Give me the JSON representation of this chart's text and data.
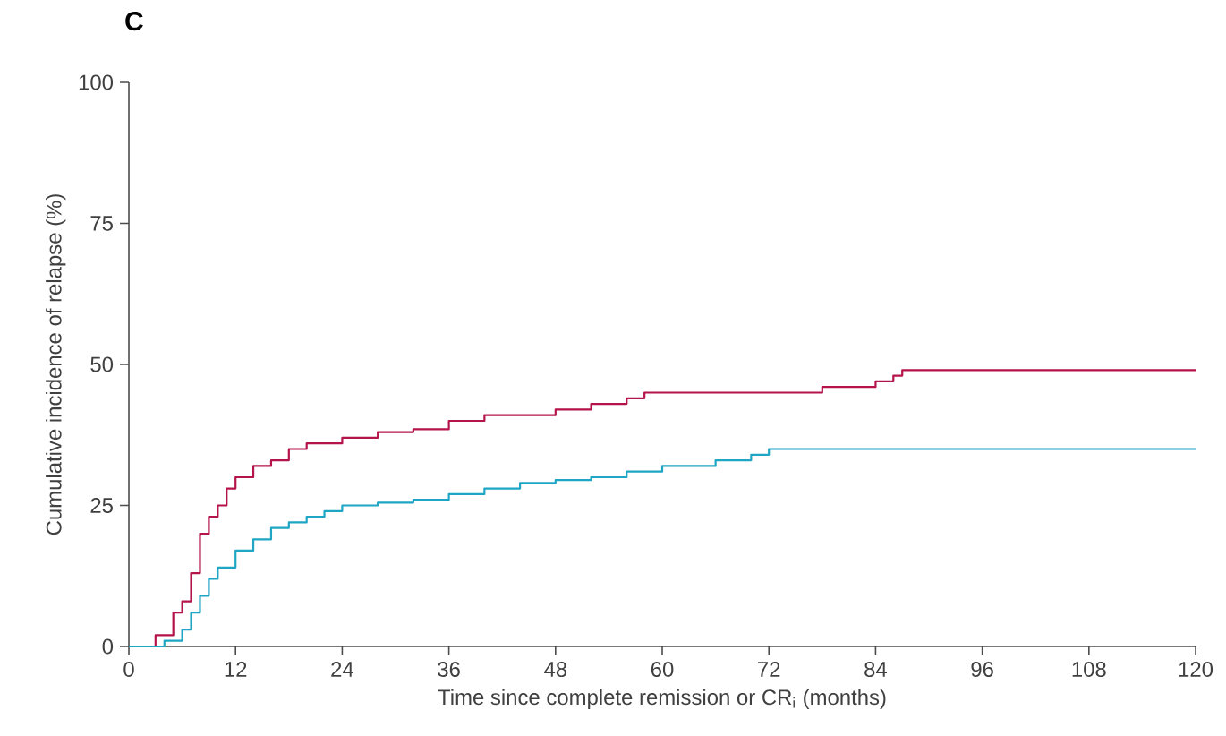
{
  "chart_data": {
    "type": "step",
    "title": "C",
    "xlabel": "Time since complete remission or CR$_{i}$ (months)",
    "ylabel": "Cumulative incidence of relapse (%)",
    "xlim": [
      0,
      120
    ],
    "xticks": [
      0,
      12,
      24,
      36,
      48,
      60,
      72,
      84,
      96,
      108,
      120
    ],
    "ylim": [
      0,
      100
    ],
    "yticks": [
      0,
      25,
      50,
      75,
      100
    ],
    "grid": false,
    "series": [
      {
        "color": "#b5134b",
        "x": [
          0,
          3,
          5,
          6,
          7,
          8,
          9,
          10,
          11,
          12,
          14,
          16,
          18,
          20,
          24,
          28,
          32,
          36,
          40,
          48,
          52,
          56,
          58,
          72,
          78,
          84,
          86,
          87,
          120
        ],
        "values": [
          0,
          2,
          6,
          8,
          13,
          20,
          23,
          25,
          28,
          30,
          32,
          33,
          35,
          36,
          37,
          38,
          38.5,
          40,
          41,
          42,
          43,
          44,
          45,
          45,
          46,
          47,
          48,
          49,
          49
        ]
      },
      {
        "color": "#1ea6c4",
        "x": [
          0,
          4,
          6,
          7,
          8,
          9,
          10,
          12,
          14,
          16,
          18,
          20,
          22,
          24,
          28,
          32,
          36,
          40,
          44,
          48,
          52,
          56,
          60,
          66,
          70,
          72,
          120
        ],
        "values": [
          0,
          1,
          3,
          6,
          9,
          12,
          14,
          17,
          19,
          21,
          22,
          23,
          24,
          25,
          25.5,
          26,
          27,
          28,
          29,
          29.5,
          30,
          31,
          32,
          33,
          34,
          35,
          35
        ]
      }
    ]
  }
}
